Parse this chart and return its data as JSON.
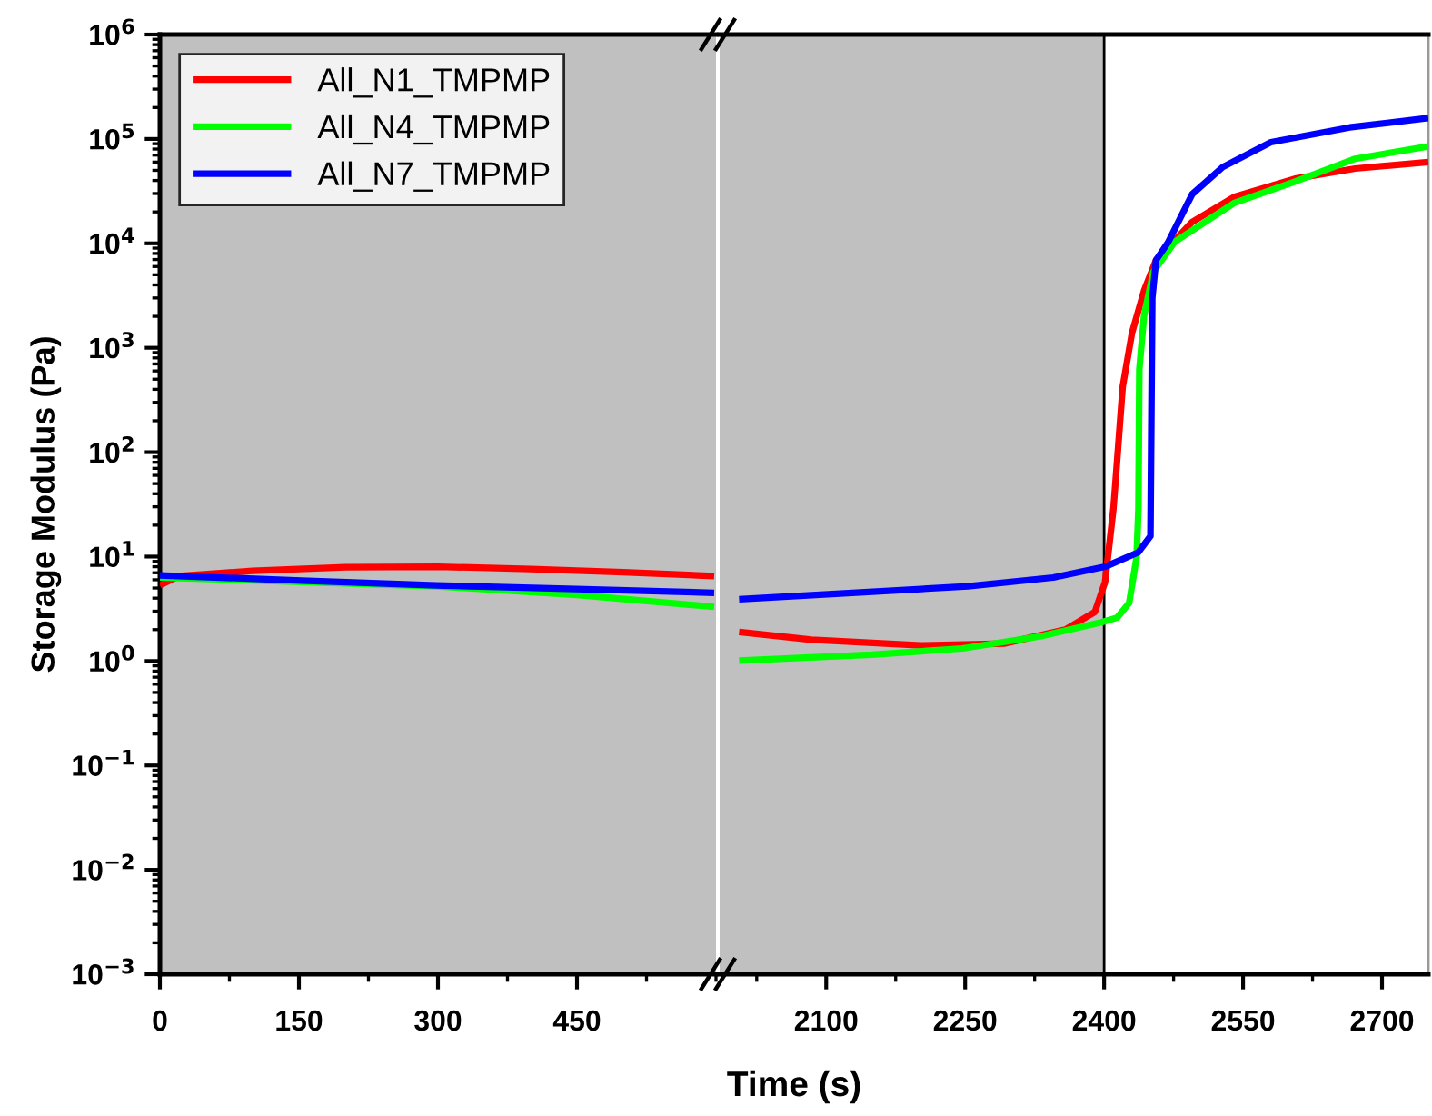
{
  "chart_data": [
    {
      "type": "line",
      "xlabel": "Time (s)",
      "ylabel": "Storage Modulus (Pa)",
      "log": "y",
      "legend": "top left",
      "grid": false,
      "xlim": [
        0,
        600
      ],
      "xticks": [
        0,
        150,
        300,
        450
      ],
      "ylim": [
        0.001,
        1000000
      ],
      "yticks": [
        {
          "value": 0.001,
          "label": "10$^{−3}$"
        },
        {
          "value": 0.01,
          "label": "10$^{−2}$"
        },
        {
          "value": 0.1,
          "label": "10$^{−1}$"
        },
        {
          "value": 1,
          "label": "10$^{0}$"
        },
        {
          "value": 10,
          "label": "10$^{1}$"
        },
        {
          "value": 100,
          "label": "10$^{2}$"
        },
        {
          "value": 1000,
          "label": "10$^{3}$"
        },
        {
          "value": 10000,
          "label": "10$^{4}$"
        },
        {
          "value": 100000,
          "label": "10$^{5}$"
        },
        {
          "value": 1000000,
          "label": "10$^{6}$"
        }
      ],
      "bands": [
        {
          "axis": "x",
          "from": 0,
          "to": 2400,
          "color": "#c0c0c0"
        }
      ],
      "series": [
        {
          "name": "All_N1_TMPMP",
          "color": "#ff0000",
          "x": [
            0,
            20,
            100,
            200,
            300,
            400,
            500,
            598
          ],
          "values": [
            5.3,
            6.5,
            7.3,
            7.9,
            8.0,
            7.6,
            7.1,
            6.5
          ]
        },
        {
          "name": "All_N4_TMPMP",
          "color": "#00ff00",
          "x": [
            0,
            300,
            450,
            598
          ],
          "values": [
            6.3,
            5.2,
            4.3,
            3.3
          ]
        },
        {
          "name": "All_N7_TMPMP",
          "color": "#0000ff",
          "x": [
            0,
            153,
            298,
            449,
            598
          ],
          "values": [
            6.6,
            5.9,
            5.3,
            4.9,
            4.5
          ]
        }
      ]
    },
    {
      "type": "line",
      "log": "y",
      "grid": false,
      "tick_labels": "x",
      "xlim": [
        1985,
        2750
      ],
      "xticks": [
        2100,
        2250,
        2400,
        2550,
        2700
      ],
      "ylim": [
        0.001,
        1000000
      ],
      "bands": [
        {
          "axis": "x",
          "from": 0,
          "to": 2400,
          "color": "#c0c0c0"
        }
      ],
      "series": [
        {
          "color": "#ff0000",
          "x": [
            2006,
            2084,
            2202,
            2292,
            2358,
            2390,
            2401,
            2410,
            2413,
            2420,
            2430,
            2443,
            2456,
            2495,
            2541,
            2606,
            2671,
            2750
          ],
          "values": [
            1.9,
            1.6,
            1.41,
            1.47,
            2.0,
            2.95,
            5.7,
            28.6,
            63,
            420,
            1380,
            3500,
            6900,
            16000,
            28000,
            41600,
            52000,
            60000
          ]
        },
        {
          "color": "#00ff00",
          "x": [
            2006,
            2149,
            2247,
            2332,
            2397,
            2414,
            2427,
            2435,
            2437,
            2438,
            2443,
            2453,
            2476,
            2541,
            2606,
            2671,
            2750
          ],
          "values": [
            1.01,
            1.15,
            1.32,
            1.73,
            2.35,
            2.6,
            3.6,
            9.8,
            28.6,
            620,
            2000,
            5300,
            10300,
            24500,
            39000,
            64600,
            85000
          ]
        },
        {
          "color": "#0000ff",
          "x": [
            2006,
            2253,
            2345,
            2401,
            2437,
            2450,
            2452,
            2456,
            2469,
            2495,
            2528,
            2580,
            2665,
            2750
          ],
          "values": [
            3.9,
            5.2,
            6.3,
            8.0,
            11,
            15.7,
            3000,
            6900,
            10200,
            29500,
            53700,
            93000,
            129000,
            159000
          ]
        }
      ]
    }
  ]
}
